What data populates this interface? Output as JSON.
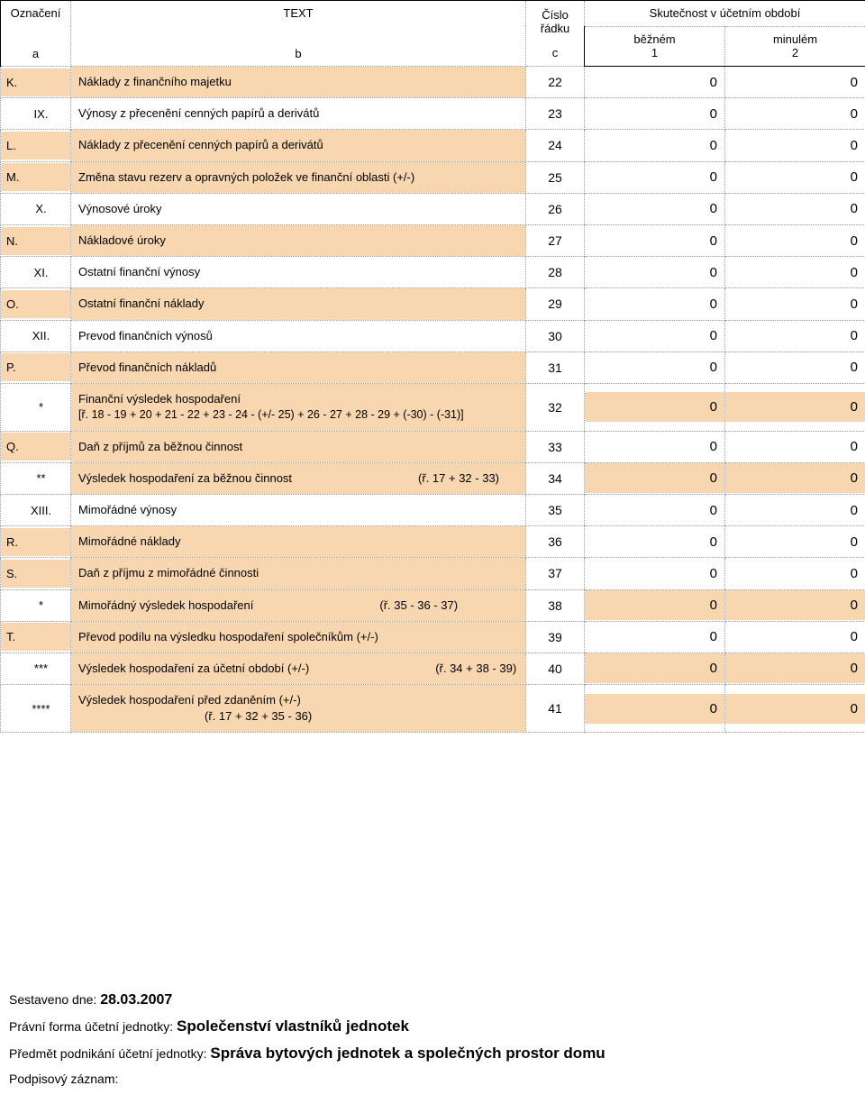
{
  "header": {
    "oznaceni": "Označení",
    "oznaceni_sub": "a",
    "text": "TEXT",
    "text_sub": "b",
    "row": "Číslo\nřádku",
    "row_sub": "c",
    "period": "Skutečnost v účetním období",
    "current": "běžném",
    "current_sub": "1",
    "previous": "minulém",
    "previous_sub": "2"
  },
  "colors": {
    "highlight": "#f7d6b0",
    "border_dotted": "#999999",
    "border_solid": "#000000",
    "background": "#ffffff",
    "text": "#000000"
  },
  "rows": [
    {
      "ozn": "K.",
      "ozn_indent": false,
      "text": "Náklady z finančního majetku",
      "formula": "",
      "row": "22",
      "v1": "0",
      "v2": "0",
      "hl_ozn": true,
      "hl_text": true,
      "hl_v1": false,
      "hl_v2": false
    },
    {
      "ozn": "IX.",
      "ozn_indent": true,
      "text": "Výnosy z přecenění cenných papírů a derivátů",
      "formula": "",
      "row": "23",
      "v1": "0",
      "v2": "0",
      "hl_ozn": false,
      "hl_text": false,
      "hl_v1": false,
      "hl_v2": false
    },
    {
      "ozn": "L.",
      "ozn_indent": false,
      "text": "Náklady z přecenění cenných papírů a derivátů",
      "formula": "",
      "row": "24",
      "v1": "0",
      "v2": "0",
      "hl_ozn": true,
      "hl_text": true,
      "hl_v1": false,
      "hl_v2": false
    },
    {
      "ozn": "M.",
      "ozn_indent": false,
      "text": "Změna stavu rezerv a opravných položek ve finanční oblasti (+/-)",
      "formula": "",
      "row": "25",
      "v1": "0",
      "v2": "0",
      "hl_ozn": true,
      "hl_text": true,
      "hl_v1": false,
      "hl_v2": false
    },
    {
      "ozn": "X.",
      "ozn_indent": true,
      "text": "Výnosové úroky",
      "formula": "",
      "row": "26",
      "v1": "0",
      "v2": "0",
      "hl_ozn": false,
      "hl_text": false,
      "hl_v1": false,
      "hl_v2": false
    },
    {
      "ozn": "N.",
      "ozn_indent": false,
      "text": "Nákladové úroky",
      "formula": "",
      "row": "27",
      "v1": "0",
      "v2": "0",
      "hl_ozn": true,
      "hl_text": true,
      "hl_v1": false,
      "hl_v2": false
    },
    {
      "ozn": "XI.",
      "ozn_indent": true,
      "text": "Ostatní finanční výnosy",
      "formula": "",
      "row": "28",
      "v1": "0",
      "v2": "0",
      "hl_ozn": false,
      "hl_text": false,
      "hl_v1": false,
      "hl_v2": false
    },
    {
      "ozn": "O.",
      "ozn_indent": false,
      "text": "Ostatní finanční náklady",
      "formula": "",
      "row": "29",
      "v1": "0",
      "v2": "0",
      "hl_ozn": true,
      "hl_text": true,
      "hl_v1": false,
      "hl_v2": false
    },
    {
      "ozn": "XII.",
      "ozn_indent": true,
      "text": "Prevod finančních výnosů",
      "formula": "",
      "row": "30",
      "v1": "0",
      "v2": "0",
      "hl_ozn": false,
      "hl_text": false,
      "hl_v1": false,
      "hl_v2": false
    },
    {
      "ozn": "P.",
      "ozn_indent": false,
      "text": "Převod finančních nákladů",
      "formula": "",
      "row": "31",
      "v1": "0",
      "v2": "0",
      "hl_ozn": true,
      "hl_text": true,
      "hl_v1": false,
      "hl_v2": false
    },
    {
      "ozn": "*",
      "ozn_indent": true,
      "text": "Finanční výsledek hospodaření",
      "sub": "[ř. 18 - 19 + 20 + 21 - 22 + 23 - 24 - (+/- 25) + 26 - 27 + 28 - 29 + (-30) - (-31)]",
      "formula": "",
      "row": "32",
      "v1": "0",
      "v2": "0",
      "hl_ozn": false,
      "hl_text": true,
      "hl_v1": true,
      "hl_v2": true,
      "twoline": true
    },
    {
      "ozn": "Q.",
      "ozn_indent": false,
      "text": "Daň z příjmů za běžnou činnost",
      "formula": "",
      "row": "33",
      "v1": "0",
      "v2": "0",
      "hl_ozn": true,
      "hl_text": true,
      "hl_v1": false,
      "hl_v2": false
    },
    {
      "ozn": "**",
      "ozn_indent": true,
      "text": "Výsledek hospodaření za běžnou činnost",
      "formula": "(ř. 17 + 32 - 33)",
      "row": "34",
      "v1": "0",
      "v2": "0",
      "hl_ozn": false,
      "hl_text": true,
      "hl_v1": true,
      "hl_v2": true
    },
    {
      "ozn": "XIII.",
      "ozn_indent": true,
      "text": "Mimořádné výnosy",
      "formula": "",
      "row": "35",
      "v1": "0",
      "v2": "0",
      "hl_ozn": false,
      "hl_text": false,
      "hl_v1": false,
      "hl_v2": false
    },
    {
      "ozn": "R.",
      "ozn_indent": false,
      "text": "Mimořádné náklady",
      "formula": "",
      "row": "36",
      "v1": "0",
      "v2": "0",
      "hl_ozn": true,
      "hl_text": true,
      "hl_v1": false,
      "hl_v2": false
    },
    {
      "ozn": "S.",
      "ozn_indent": false,
      "text": "Daň z příjmu z mimořádné činnosti",
      "formula": "",
      "row": "37",
      "v1": "0",
      "v2": "0",
      "hl_ozn": true,
      "hl_text": true,
      "hl_v1": false,
      "hl_v2": false
    },
    {
      "ozn": "*",
      "ozn_indent": true,
      "text": "Mimořádný výsledek hospodaření",
      "formula": "(ř. 35 - 36 - 37)",
      "row": "38",
      "v1": "0",
      "v2": "0",
      "hl_ozn": false,
      "hl_text": true,
      "hl_v1": true,
      "hl_v2": true
    },
    {
      "ozn": "T.",
      "ozn_indent": false,
      "text": "Převod podílu na výsledku hospodaření společníkům (+/-)",
      "formula": "",
      "row": "39",
      "v1": "0",
      "v2": "0",
      "hl_ozn": true,
      "hl_text": true,
      "hl_v1": false,
      "hl_v2": false
    },
    {
      "ozn": "***",
      "ozn_indent": true,
      "text": "Výsledek hospodaření za účetní období (+/-)",
      "formula": "(ř. 34 + 38 - 39)",
      "row": "40",
      "v1": "0",
      "v2": "0",
      "hl_ozn": false,
      "hl_text": true,
      "hl_v1": true,
      "hl_v2": true
    },
    {
      "ozn": "****",
      "ozn_indent": true,
      "text": "Výsledek hospodaření před zdaněním (+/-)",
      "formula": "(ř. 17 + 32 + 35 - 36)",
      "row": "41",
      "v1": "0",
      "v2": "0",
      "hl_ozn": false,
      "hl_text": true,
      "hl_v1": true,
      "hl_v2": true
    }
  ],
  "footer": {
    "compiled_label": "Sestaveno dne:",
    "compiled_date": "28.03.2007",
    "legal_form_label": "Právní forma účetní jednotky:",
    "legal_form": "Společenství vlastníků jednotek",
    "subject_label": "Předmět podnikání účetní jednotky:",
    "subject": "Správa bytových jednotek a společných prostor domu",
    "signature_label": "Podpisový záznam:"
  }
}
